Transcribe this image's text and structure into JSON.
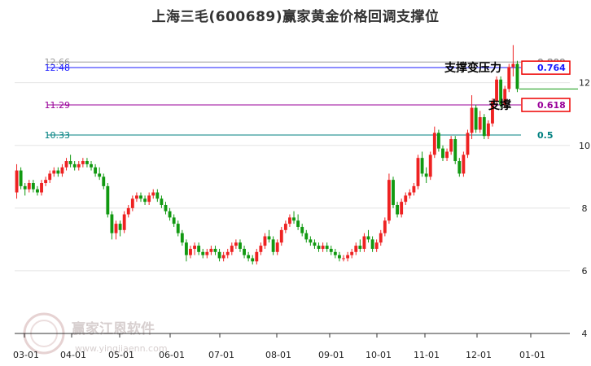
{
  "chart_data": {
    "type": "candlestick",
    "title": "上海三毛(600689)赢家黄金价格回调支撑位",
    "x_ticks": [
      "03-01",
      "04-01",
      "05-01",
      "06-01",
      "07-01",
      "08-01",
      "09-01",
      "10-01",
      "11-01",
      "12-01",
      "01-01"
    ],
    "y_ticks": [
      4,
      6,
      8,
      10,
      12
    ],
    "ylim": [
      4,
      13.6
    ],
    "levels": [
      {
        "value": 12.66,
        "label": "12.66",
        "ratio": "0.809",
        "color": "#999999",
        "boxed": false
      },
      {
        "value": 12.48,
        "label": "12.48",
        "ratio": "0.764",
        "color": "#1a1aff",
        "boxed": true
      },
      {
        "value": 11.29,
        "label": "11.29",
        "ratio": "0.618",
        "color": "#990099",
        "boxed": true
      },
      {
        "value": 10.33,
        "label": "10.33",
        "ratio": "0.5",
        "color": "#008080",
        "boxed": false
      }
    ],
    "annotations": [
      "支撑变压力",
      "支撑"
    ],
    "watermark": "赢家江恩软件",
    "watermark_sub": "www.yingjiaenn.com",
    "up_color": "#ee2222",
    "down_color": "#119911",
    "candles": [
      [
        8.5,
        9.4,
        8.3,
        9.2
      ],
      [
        9.2,
        9.3,
        8.6,
        8.7
      ],
      [
        8.7,
        8.8,
        8.4,
        8.6
      ],
      [
        8.6,
        8.9,
        8.5,
        8.8
      ],
      [
        8.8,
        8.9,
        8.5,
        8.6
      ],
      [
        8.6,
        8.7,
        8.4,
        8.5
      ],
      [
        8.5,
        8.9,
        8.4,
        8.8
      ],
      [
        8.8,
        9.0,
        8.7,
        8.9
      ],
      [
        8.9,
        9.2,
        8.8,
        9.1
      ],
      [
        9.1,
        9.3,
        9.0,
        9.2
      ],
      [
        9.2,
        9.3,
        9.0,
        9.1
      ],
      [
        9.1,
        9.4,
        9.0,
        9.3
      ],
      [
        9.3,
        9.6,
        9.2,
        9.5
      ],
      [
        9.5,
        9.7,
        9.3,
        9.4
      ],
      [
        9.4,
        9.5,
        9.2,
        9.3
      ],
      [
        9.3,
        9.5,
        9.2,
        9.4
      ],
      [
        9.4,
        9.6,
        9.3,
        9.5
      ],
      [
        9.5,
        9.6,
        9.3,
        9.4
      ],
      [
        9.4,
        9.5,
        9.2,
        9.3
      ],
      [
        9.3,
        9.4,
        9.0,
        9.1
      ],
      [
        9.1,
        9.3,
        8.9,
        9.0
      ],
      [
        9.0,
        9.1,
        8.6,
        8.7
      ],
      [
        8.7,
        8.8,
        7.7,
        7.8
      ],
      [
        7.8,
        7.9,
        7.0,
        7.2
      ],
      [
        7.2,
        7.6,
        7.0,
        7.5
      ],
      [
        7.5,
        7.6,
        7.1,
        7.3
      ],
      [
        7.3,
        7.9,
        7.2,
        7.8
      ],
      [
        7.8,
        8.1,
        7.7,
        8.0
      ],
      [
        8.0,
        8.4,
        7.9,
        8.3
      ],
      [
        8.3,
        8.5,
        8.2,
        8.4
      ],
      [
        8.4,
        8.5,
        8.2,
        8.3
      ],
      [
        8.3,
        8.4,
        8.1,
        8.2
      ],
      [
        8.2,
        8.5,
        8.1,
        8.4
      ],
      [
        8.4,
        8.6,
        8.3,
        8.5
      ],
      [
        8.5,
        8.6,
        8.2,
        8.3
      ],
      [
        8.3,
        8.4,
        8.0,
        8.1
      ],
      [
        8.1,
        8.2,
        7.8,
        7.9
      ],
      [
        7.9,
        8.0,
        7.6,
        7.7
      ],
      [
        7.7,
        7.8,
        7.4,
        7.5
      ],
      [
        7.5,
        7.6,
        7.1,
        7.2
      ],
      [
        7.2,
        7.3,
        6.8,
        6.9
      ],
      [
        6.9,
        7.0,
        6.3,
        6.5
      ],
      [
        6.5,
        6.8,
        6.4,
        6.7
      ],
      [
        6.7,
        6.9,
        6.5,
        6.8
      ],
      [
        6.8,
        6.9,
        6.5,
        6.6
      ],
      [
        6.6,
        6.7,
        6.4,
        6.5
      ],
      [
        6.5,
        6.7,
        6.4,
        6.6
      ],
      [
        6.6,
        6.8,
        6.5,
        6.7
      ],
      [
        6.7,
        6.8,
        6.5,
        6.6
      ],
      [
        6.6,
        6.7,
        6.3,
        6.4
      ],
      [
        6.4,
        6.6,
        6.3,
        6.5
      ],
      [
        6.5,
        6.7,
        6.4,
        6.6
      ],
      [
        6.6,
        6.9,
        6.5,
        6.8
      ],
      [
        6.8,
        7.0,
        6.7,
        6.9
      ],
      [
        6.9,
        7.0,
        6.6,
        6.7
      ],
      [
        6.7,
        6.8,
        6.4,
        6.5
      ],
      [
        6.5,
        6.6,
        6.3,
        6.4
      ],
      [
        6.4,
        6.5,
        6.2,
        6.3
      ],
      [
        6.3,
        6.7,
        6.2,
        6.6
      ],
      [
        6.6,
        6.9,
        6.5,
        6.8
      ],
      [
        6.8,
        7.2,
        6.7,
        7.1
      ],
      [
        7.1,
        7.3,
        6.9,
        7.0
      ],
      [
        7.0,
        7.1,
        6.5,
        6.6
      ],
      [
        6.6,
        7.0,
        6.5,
        6.9
      ],
      [
        6.9,
        7.4,
        6.8,
        7.3
      ],
      [
        7.3,
        7.6,
        7.2,
        7.5
      ],
      [
        7.5,
        7.8,
        7.4,
        7.7
      ],
      [
        7.7,
        7.9,
        7.5,
        7.6
      ],
      [
        7.6,
        7.8,
        7.3,
        7.4
      ],
      [
        7.4,
        7.5,
        7.1,
        7.2
      ],
      [
        7.2,
        7.3,
        6.9,
        7.0
      ],
      [
        7.0,
        7.1,
        6.8,
        6.9
      ],
      [
        6.9,
        7.0,
        6.7,
        6.8
      ],
      [
        6.8,
        6.9,
        6.6,
        6.7
      ],
      [
        6.7,
        6.9,
        6.6,
        6.8
      ],
      [
        6.8,
        6.9,
        6.6,
        6.7
      ],
      [
        6.7,
        6.8,
        6.5,
        6.6
      ],
      [
        6.6,
        6.7,
        6.4,
        6.5
      ],
      [
        6.5,
        6.6,
        6.3,
        6.4
      ],
      [
        6.4,
        6.5,
        6.3,
        6.4
      ],
      [
        6.4,
        6.6,
        6.3,
        6.5
      ],
      [
        6.5,
        6.7,
        6.4,
        6.6
      ],
      [
        6.6,
        6.9,
        6.5,
        6.8
      ],
      [
        6.8,
        7.0,
        6.6,
        6.7
      ],
      [
        6.7,
        7.2,
        6.6,
        7.1
      ],
      [
        7.1,
        7.3,
        6.9,
        7.0
      ],
      [
        7.0,
        7.1,
        6.6,
        6.7
      ],
      [
        6.7,
        7.0,
        6.6,
        6.9
      ],
      [
        6.9,
        7.3,
        6.8,
        7.2
      ],
      [
        7.2,
        7.7,
        7.1,
        7.6
      ],
      [
        7.6,
        9.1,
        7.5,
        8.9
      ],
      [
        8.9,
        9.0,
        8.0,
        8.1
      ],
      [
        8.1,
        8.2,
        7.7,
        7.8
      ],
      [
        7.8,
        8.3,
        7.7,
        8.2
      ],
      [
        8.2,
        8.5,
        8.1,
        8.4
      ],
      [
        8.4,
        8.6,
        8.3,
        8.5
      ],
      [
        8.5,
        8.8,
        8.4,
        8.7
      ],
      [
        8.7,
        9.7,
        8.6,
        9.6
      ],
      [
        9.6,
        9.8,
        9.0,
        9.1
      ],
      [
        9.1,
        9.3,
        8.8,
        9.0
      ],
      [
        9.0,
        9.8,
        8.9,
        9.7
      ],
      [
        9.7,
        10.6,
        9.6,
        10.4
      ],
      [
        10.4,
        10.5,
        9.8,
        9.9
      ],
      [
        9.9,
        10.0,
        9.5,
        9.6
      ],
      [
        9.6,
        9.9,
        9.5,
        9.8
      ],
      [
        9.8,
        10.3,
        9.7,
        10.2
      ],
      [
        10.2,
        10.3,
        9.4,
        9.5
      ],
      [
        9.5,
        9.6,
        9.0,
        9.1
      ],
      [
        9.1,
        9.8,
        9.0,
        9.7
      ],
      [
        9.7,
        10.5,
        9.6,
        10.4
      ],
      [
        10.4,
        11.6,
        10.2,
        11.2
      ],
      [
        11.2,
        11.3,
        10.4,
        10.5
      ],
      [
        10.5,
        11.1,
        10.4,
        10.9
      ],
      [
        10.9,
        11.0,
        10.2,
        10.3
      ],
      [
        10.3,
        10.8,
        10.2,
        10.7
      ],
      [
        10.7,
        11.5,
        10.6,
        11.4
      ],
      [
        11.4,
        12.2,
        11.3,
        12.1
      ],
      [
        12.1,
        12.2,
        11.2,
        11.3
      ],
      [
        11.3,
        11.9,
        11.2,
        11.8
      ],
      [
        11.8,
        12.6,
        11.7,
        12.5
      ],
      [
        12.5,
        13.2,
        12.2,
        12.6
      ],
      [
        12.6,
        12.7,
        11.7,
        11.8
      ]
    ]
  }
}
